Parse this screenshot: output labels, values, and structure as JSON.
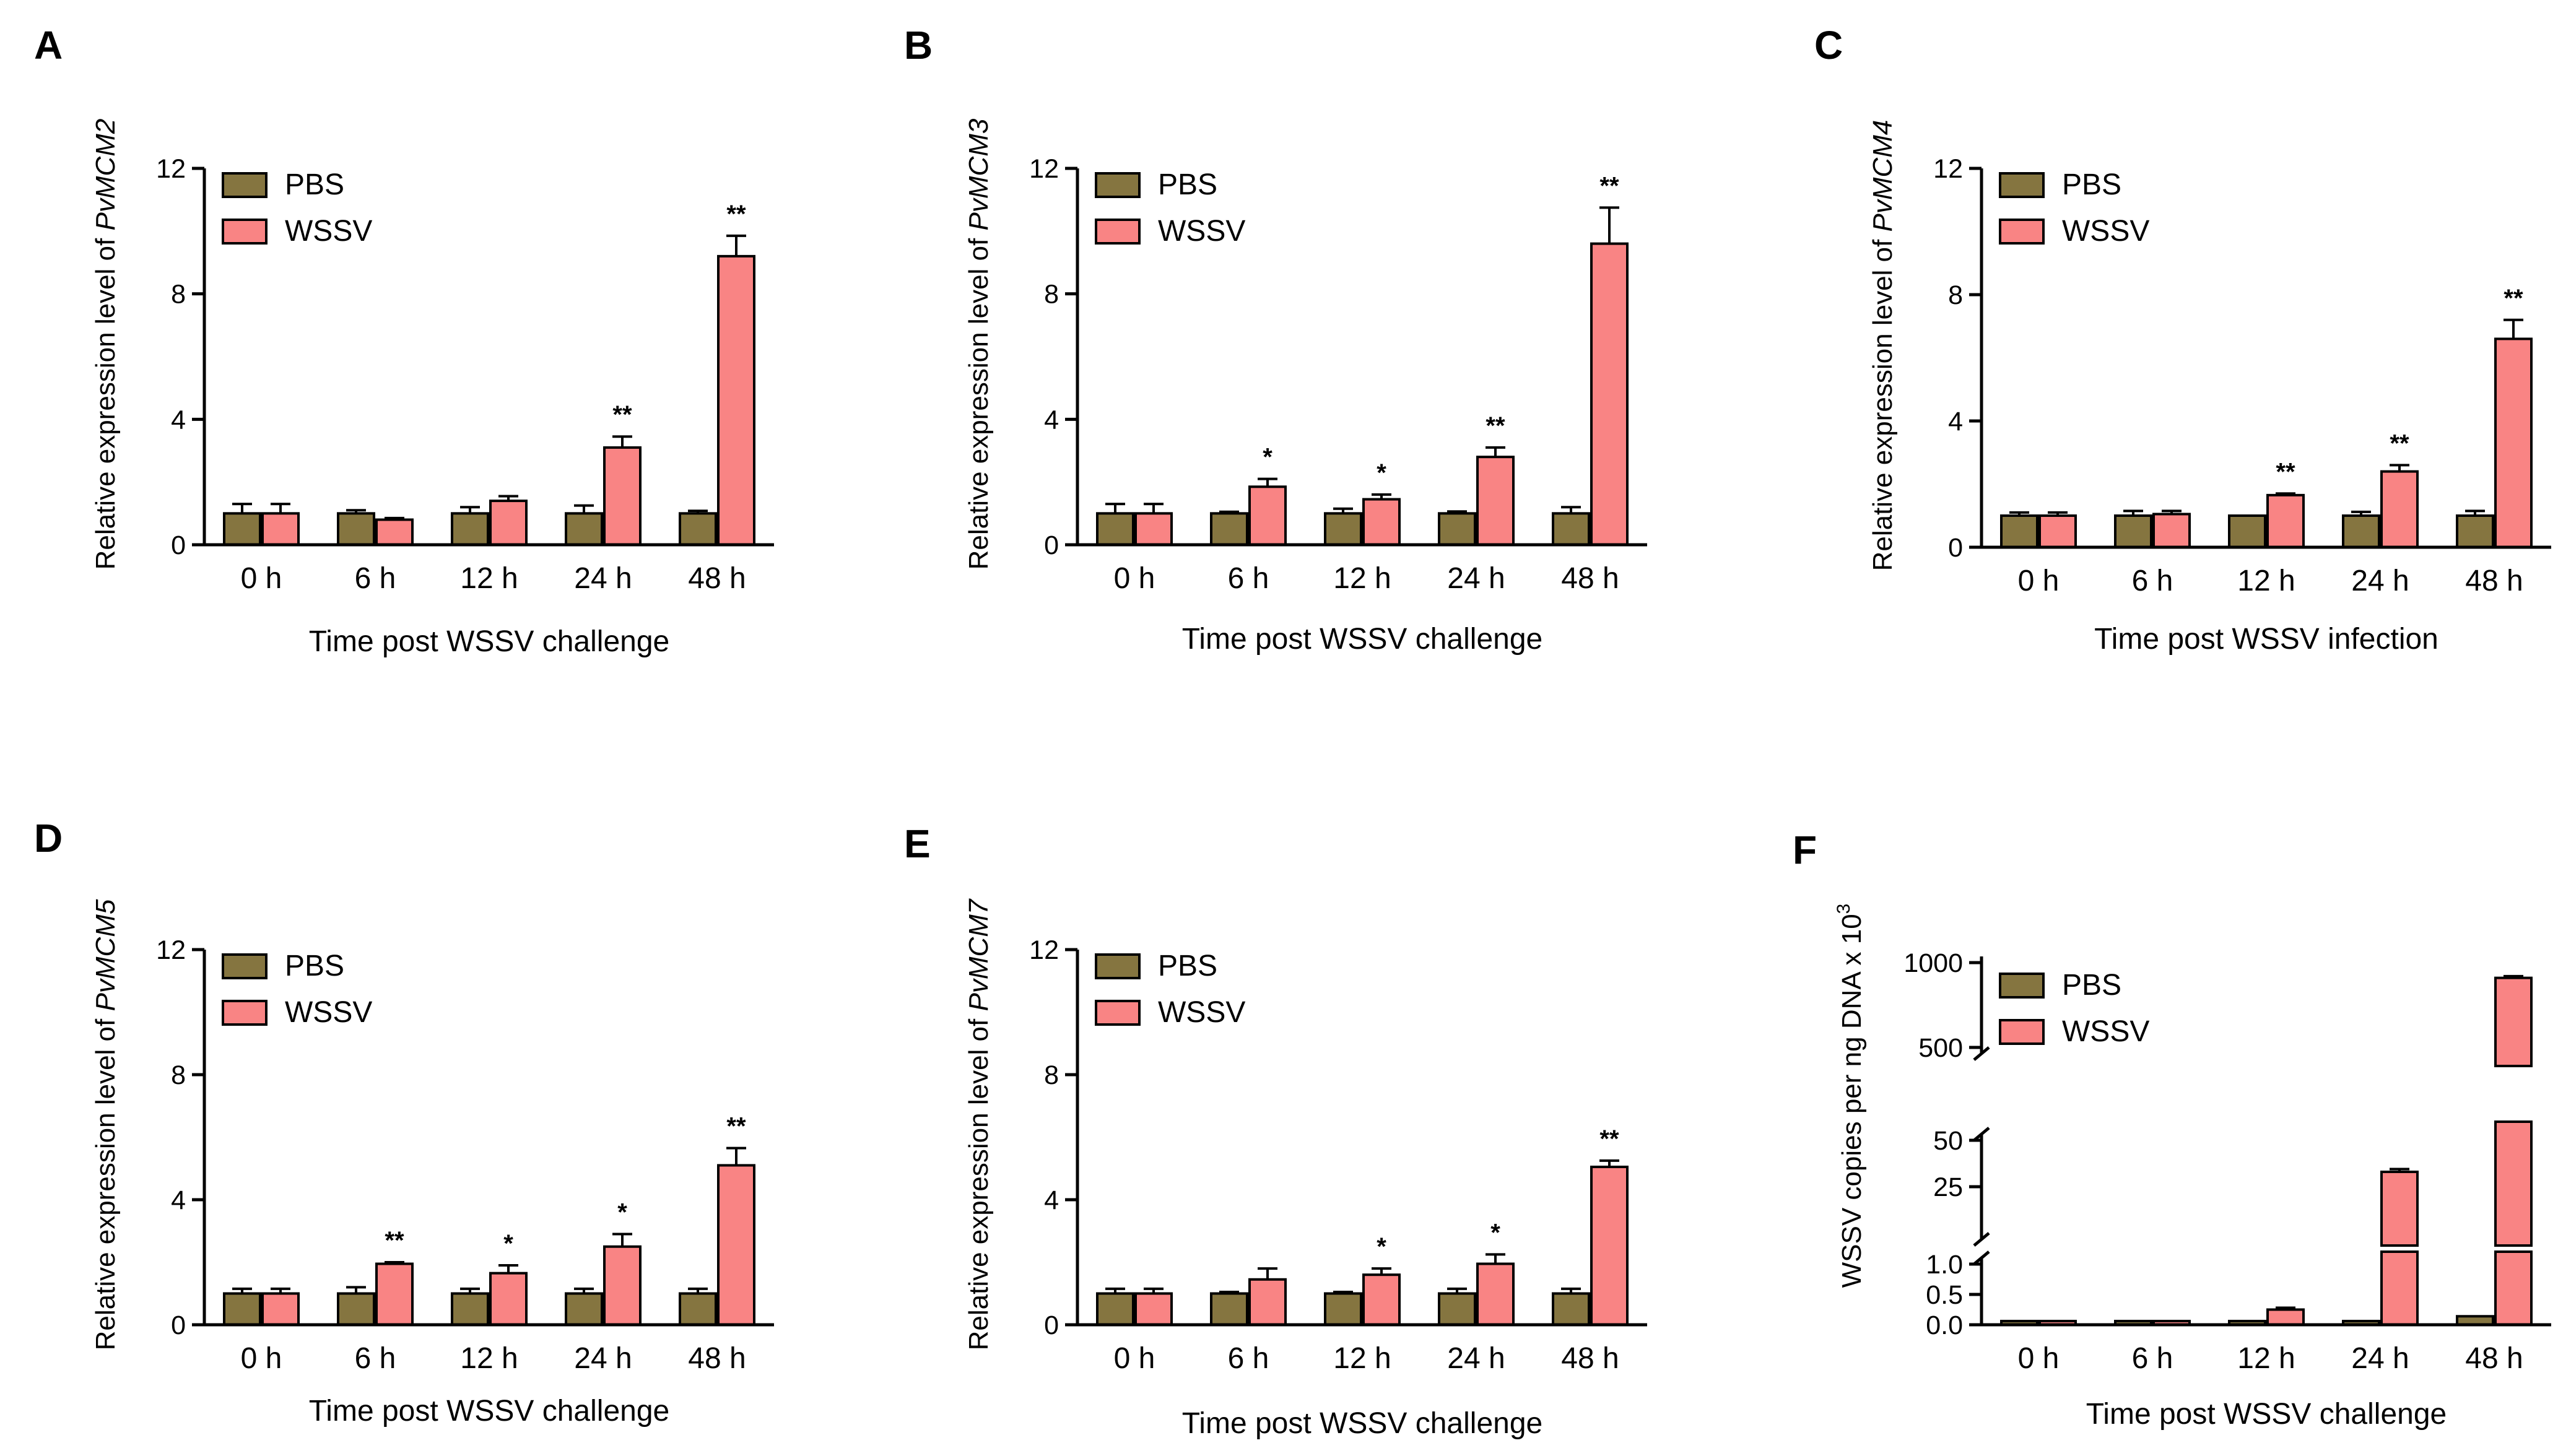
{
  "colors": {
    "PBS": "#857540",
    "WSSV": "#F98484",
    "stroke": "#000000"
  },
  "chart_data": [
    {
      "panel": "A",
      "type": "bar",
      "ylabel_prefix": "Relative expression level of ",
      "ylabel_gene": "PvMCM2",
      "xlabel": "Time post WSSV challenge",
      "categories": [
        "0 h",
        "6 h",
        "12 h",
        "24 h",
        "48 h"
      ],
      "ylim": [
        0,
        12
      ],
      "yticks": [
        0,
        4,
        8,
        12
      ],
      "ytick_labels": [
        "0",
        "4",
        "8",
        "12"
      ],
      "legend": [
        "PBS",
        "WSSV"
      ],
      "series": [
        {
          "name": "PBS",
          "values": [
            1.0,
            1.0,
            1.0,
            1.0,
            1.0
          ],
          "errors": [
            0.3,
            0.1,
            0.2,
            0.25,
            0.08
          ]
        },
        {
          "name": "WSSV",
          "values": [
            1.0,
            0.8,
            1.4,
            3.1,
            9.2
          ],
          "errors": [
            0.3,
            0.05,
            0.15,
            0.35,
            0.65
          ]
        }
      ],
      "significance": [
        "",
        "",
        "",
        "**",
        "**"
      ]
    },
    {
      "panel": "B",
      "type": "bar",
      "ylabel_prefix": "Relative expression level of ",
      "ylabel_gene": "PvMCM3",
      "xlabel": "Time post WSSV challenge",
      "categories": [
        "0 h",
        "6 h",
        "12 h",
        "24 h",
        "48 h"
      ],
      "ylim": [
        0,
        12
      ],
      "yticks": [
        0,
        4,
        8,
        12
      ],
      "ytick_labels": [
        "0",
        "4",
        "8",
        "12"
      ],
      "legend": [
        "PBS",
        "WSSV"
      ],
      "series": [
        {
          "name": "PBS",
          "values": [
            1.0,
            1.0,
            1.0,
            1.0,
            1.0
          ],
          "errors": [
            0.3,
            0.05,
            0.15,
            0.06,
            0.2
          ]
        },
        {
          "name": "WSSV",
          "values": [
            1.0,
            1.85,
            1.45,
            2.8,
            9.6
          ],
          "errors": [
            0.3,
            0.25,
            0.15,
            0.3,
            1.15
          ]
        }
      ],
      "significance": [
        "",
        "*",
        "*",
        "**",
        "**"
      ]
    },
    {
      "panel": "C",
      "type": "bar",
      "ylabel_prefix": "Relative expression level of ",
      "ylabel_gene": "PvMCM4",
      "xlabel": "Time post WSSV infection",
      "categories": [
        "0 h",
        "6 h",
        "12 h",
        "24 h",
        "48 h"
      ],
      "ylim": [
        0,
        12
      ],
      "yticks": [
        0,
        4,
        8,
        12
      ],
      "ytick_labels": [
        "0",
        "4",
        "8",
        "12"
      ],
      "legend": [
        "PBS",
        "WSSV"
      ],
      "series": [
        {
          "name": "PBS",
          "values": [
            1.0,
            1.0,
            1.0,
            1.0,
            1.0
          ],
          "errors": [
            0.1,
            0.15,
            0.03,
            0.12,
            0.15
          ]
        },
        {
          "name": "WSSV",
          "values": [
            1.0,
            1.05,
            1.65,
            2.4,
            6.6
          ],
          "errors": [
            0.1,
            0.1,
            0.05,
            0.2,
            0.6
          ]
        }
      ],
      "significance": [
        "",
        "",
        "**",
        "**",
        "**"
      ]
    },
    {
      "panel": "D",
      "type": "bar",
      "ylabel_prefix": "Relative expression level of ",
      "ylabel_gene": "PvMCM5",
      "xlabel": "Time post WSSV challenge",
      "categories": [
        "0 h",
        "6 h",
        "12 h",
        "24 h",
        "48 h"
      ],
      "ylim": [
        0,
        12
      ],
      "yticks": [
        0,
        4,
        8,
        12
      ],
      "ytick_labels": [
        "0",
        "4",
        "8",
        "12"
      ],
      "legend": [
        "PBS",
        "WSSV"
      ],
      "series": [
        {
          "name": "PBS",
          "values": [
            1.0,
            1.0,
            1.0,
            1.0,
            1.0
          ],
          "errors": [
            0.15,
            0.2,
            0.15,
            0.15,
            0.15
          ]
        },
        {
          "name": "WSSV",
          "values": [
            1.0,
            1.95,
            1.65,
            2.5,
            5.1
          ],
          "errors": [
            0.15,
            0.05,
            0.25,
            0.4,
            0.55
          ]
        }
      ],
      "significance": [
        "",
        "**",
        "*",
        "*",
        "**"
      ]
    },
    {
      "panel": "E",
      "type": "bar",
      "ylabel_prefix": "Relative expression level of ",
      "ylabel_gene": "PvMCM7",
      "xlabel": "Time post WSSV challenge",
      "categories": [
        "0 h",
        "6 h",
        "12 h",
        "24 h",
        "48 h"
      ],
      "ylim": [
        0,
        12
      ],
      "yticks": [
        0,
        4,
        8,
        12
      ],
      "ytick_labels": [
        "0",
        "4",
        "8",
        "12"
      ],
      "legend": [
        "PBS",
        "WSSV"
      ],
      "series": [
        {
          "name": "PBS",
          "values": [
            1.0,
            1.0,
            1.0,
            1.0,
            1.0
          ],
          "errors": [
            0.15,
            0.05,
            0.05,
            0.15,
            0.15
          ]
        },
        {
          "name": "WSSV",
          "values": [
            1.0,
            1.45,
            1.6,
            1.95,
            5.05
          ],
          "errors": [
            0.15,
            0.35,
            0.2,
            0.3,
            0.2
          ]
        }
      ],
      "significance": [
        "",
        "",
        "*",
        "*",
        "**"
      ]
    },
    {
      "panel": "F",
      "type": "bar",
      "ylabel_text": "WSSV copies per ng DNA x 10",
      "ylabel_sup": "3",
      "xlabel": "Time post WSSV challenge",
      "categories": [
        "0 h",
        "6 h",
        "12 h",
        "24 h",
        "48 h"
      ],
      "axis_breaks": true,
      "segments": [
        {
          "range": [
            0,
            1.0
          ],
          "ticks": [
            0.0,
            0.5,
            1.0
          ],
          "tick_labels": [
            "0.0",
            "0.5",
            "1.0"
          ]
        },
        {
          "range": [
            0,
            50
          ],
          "ticks": [
            25,
            50
          ],
          "tick_labels": [
            "25",
            "50"
          ]
        },
        {
          "range": [
            500,
            1000
          ],
          "ticks": [
            500,
            1000
          ],
          "tick_labels": [
            "500",
            "1000"
          ]
        }
      ],
      "legend": [
        "PBS",
        "WSSV"
      ],
      "series": [
        {
          "name": "PBS",
          "values": [
            0.03,
            0.03,
            0.05,
            0.02,
            0.14
          ],
          "errors": [
            0.01,
            0.01,
            0.01,
            0.01,
            0.02
          ]
        },
        {
          "name": "WSSV",
          "values": [
            0.03,
            0.02,
            0.25,
            33,
            910
          ],
          "errors": [
            0.01,
            0.01,
            0.03,
            1.5,
            10
          ]
        }
      ],
      "significance": [
        "",
        "",
        "",
        "",
        ""
      ]
    }
  ]
}
